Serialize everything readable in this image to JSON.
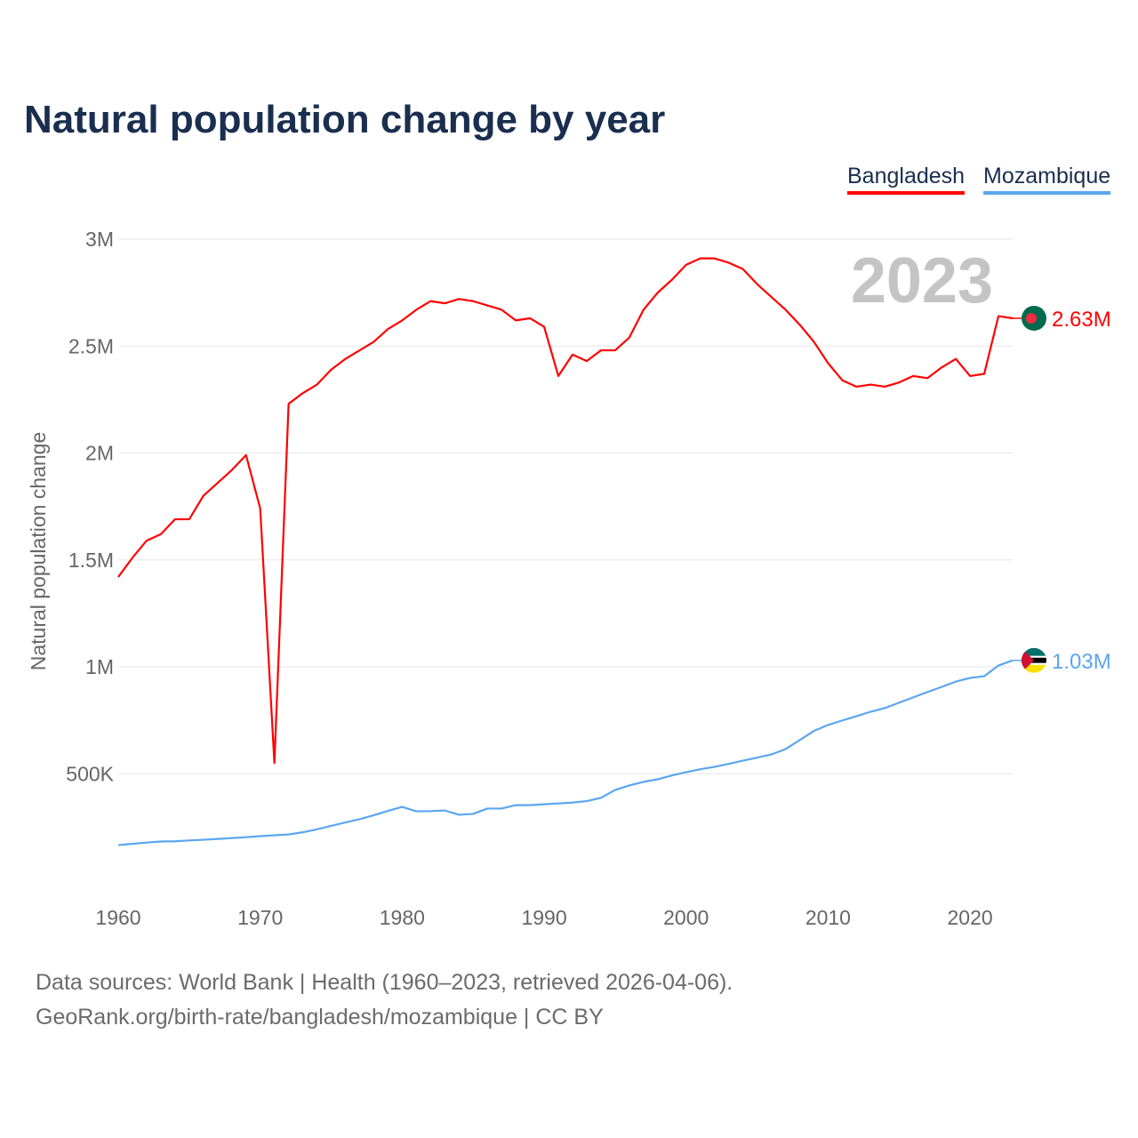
{
  "title": "Natural population change by year",
  "footer": {
    "line1": "Data sources: World Bank | Health (1960–2023, retrieved 2026-04-06).",
    "line2": "GeoRank.org/birth-rate/bangladesh/mozambique | CC BY"
  },
  "chart_data": {
    "type": "line",
    "title": "Natural population change by year",
    "ylabel": "Natural population change",
    "xlabel": "",
    "year_label": "2023",
    "xlim": [
      1960,
      2023
    ],
    "ylim": [
      0,
      3000000
    ],
    "x_ticks": [
      {
        "v": 1960,
        "label": "1960"
      },
      {
        "v": 1970,
        "label": "1970"
      },
      {
        "v": 1980,
        "label": "1980"
      },
      {
        "v": 1990,
        "label": "1990"
      },
      {
        "v": 2000,
        "label": "2000"
      },
      {
        "v": 2010,
        "label": "2010"
      },
      {
        "v": 2020,
        "label": "2020"
      }
    ],
    "y_ticks": [
      {
        "v": 500000,
        "label": "500K"
      },
      {
        "v": 1000000,
        "label": "1M"
      },
      {
        "v": 1500000,
        "label": "1.5M"
      },
      {
        "v": 2000000,
        "label": "2M"
      },
      {
        "v": 2500000,
        "label": "2.5M"
      },
      {
        "v": 3000000,
        "label": "3M"
      }
    ],
    "legend_position": "top-right",
    "x": [
      1960,
      1961,
      1962,
      1963,
      1964,
      1965,
      1966,
      1967,
      1968,
      1969,
      1970,
      1971,
      1972,
      1973,
      1974,
      1975,
      1976,
      1977,
      1978,
      1979,
      1980,
      1981,
      1982,
      1983,
      1984,
      1985,
      1986,
      1987,
      1988,
      1989,
      1990,
      1991,
      1992,
      1993,
      1994,
      1995,
      1996,
      1997,
      1998,
      1999,
      2000,
      2001,
      2002,
      2003,
      2004,
      2005,
      2006,
      2007,
      2008,
      2009,
      2010,
      2011,
      2012,
      2013,
      2014,
      2015,
      2016,
      2017,
      2018,
      2019,
      2020,
      2021,
      2022,
      2023
    ],
    "series": [
      {
        "name": "Bangladesh",
        "color": "#ff0000",
        "end_label": "2.63M",
        "values": [
          1.42,
          1.51,
          1.59,
          1.62,
          1.69,
          1.69,
          1.8,
          1.86,
          1.92,
          1.99,
          1.74,
          0.55,
          2.23,
          2.28,
          2.32,
          2.39,
          2.44,
          2.48,
          2.52,
          2.58,
          2.62,
          2.67,
          2.71,
          2.7,
          2.72,
          2.71,
          2.69,
          2.67,
          2.62,
          2.63,
          2.59,
          2.36,
          2.46,
          2.43,
          2.48,
          2.48,
          2.54,
          2.67,
          2.75,
          2.81,
          2.88,
          2.91,
          2.91,
          2.89,
          2.86,
          2.79,
          2.73,
          2.67,
          2.6,
          2.52,
          2.42,
          2.34,
          2.31,
          2.32,
          2.31,
          2.33,
          2.36,
          2.35,
          2.4,
          2.44,
          2.36,
          2.37,
          2.64,
          2.63
        ]
      },
      {
        "name": "Mozambique",
        "color": "#5aa6ef",
        "end_label": "1.03M",
        "values": [
          0.166,
          0.172,
          0.178,
          0.183,
          0.184,
          0.188,
          0.191,
          0.195,
          0.199,
          0.203,
          0.208,
          0.212,
          0.216,
          0.226,
          0.24,
          0.256,
          0.272,
          0.287,
          0.306,
          0.326,
          0.345,
          0.324,
          0.325,
          0.328,
          0.308,
          0.312,
          0.337,
          0.337,
          0.353,
          0.353,
          0.357,
          0.361,
          0.365,
          0.372,
          0.387,
          0.424,
          0.445,
          0.462,
          0.474,
          0.492,
          0.507,
          0.521,
          0.532,
          0.546,
          0.561,
          0.575,
          0.59,
          0.615,
          0.657,
          0.7,
          0.728,
          0.749,
          0.769,
          0.79,
          0.807,
          0.832,
          0.857,
          0.882,
          0.906,
          0.931,
          0.948,
          0.956,
          1.006,
          1.03
        ]
      }
    ]
  }
}
